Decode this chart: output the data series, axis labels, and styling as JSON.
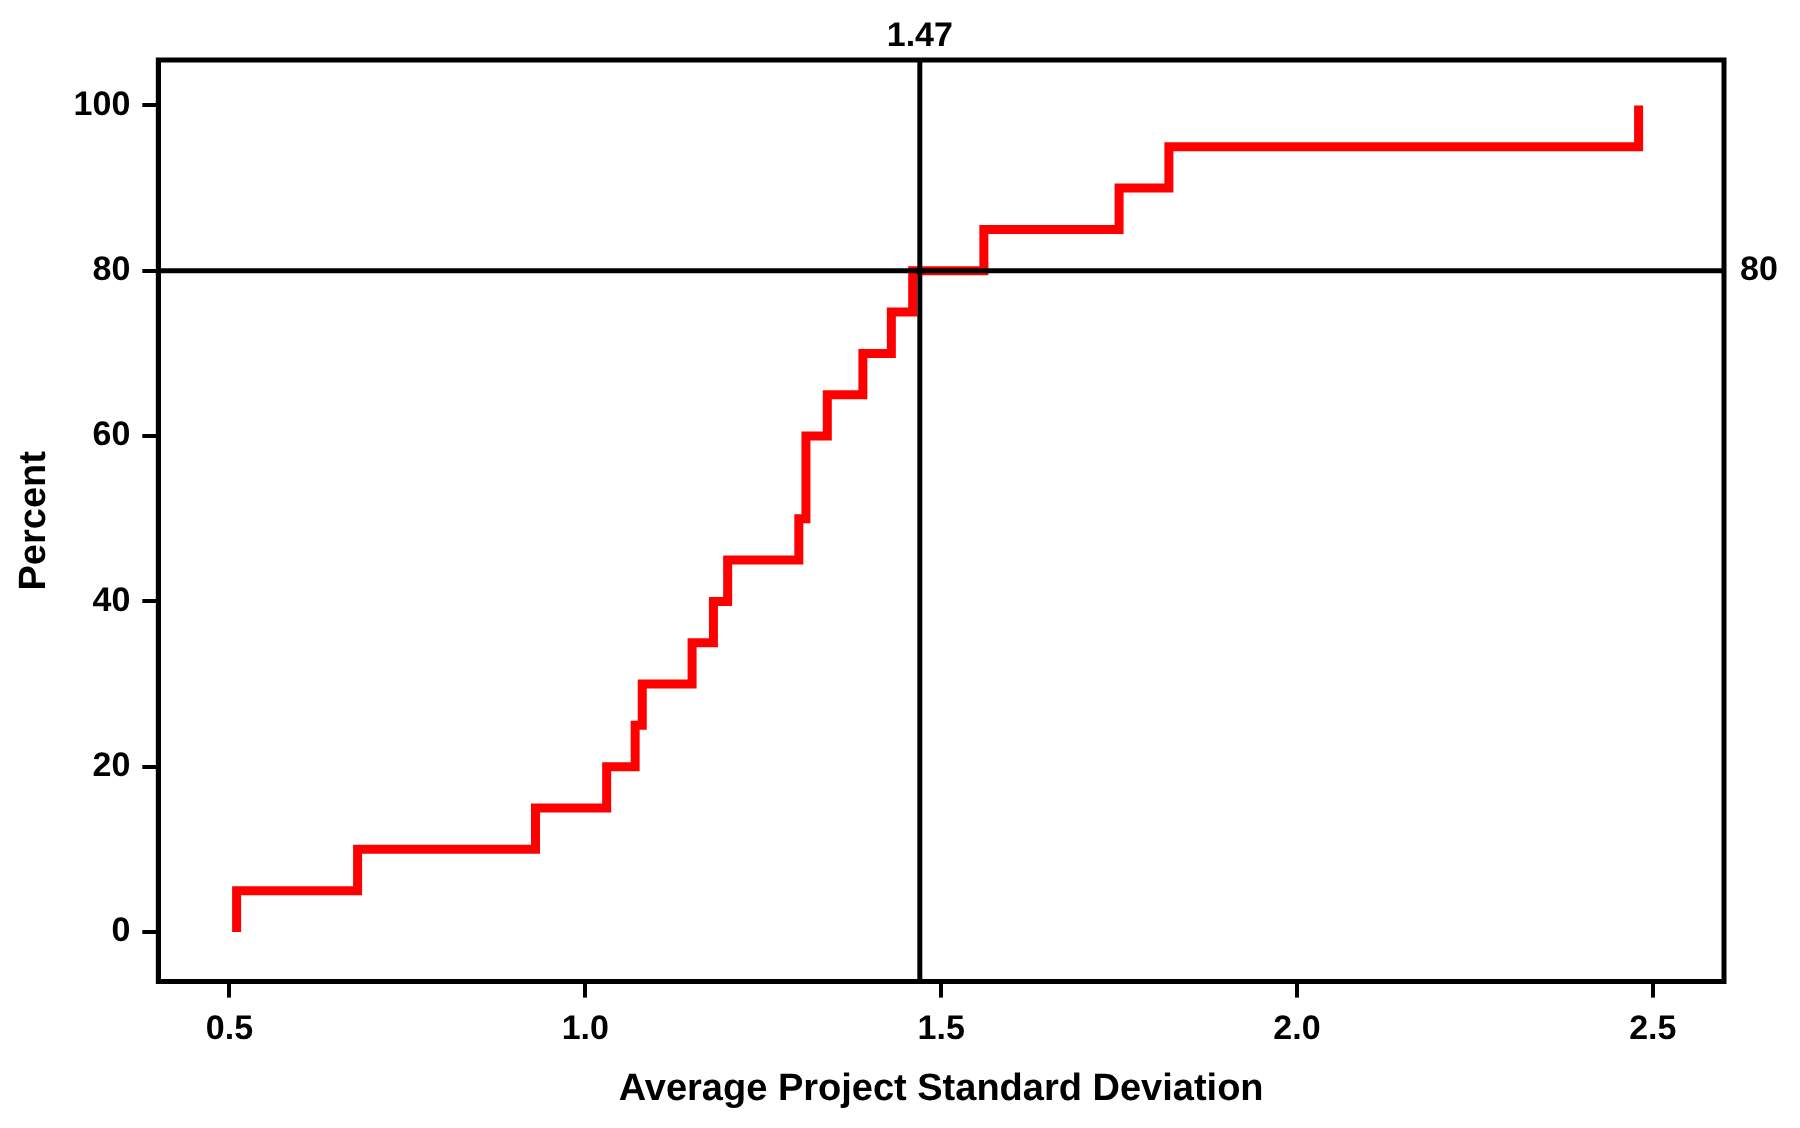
{
  "chart_data": {
    "type": "step",
    "xlabel": "Average Project Standard Deviation",
    "ylabel": "Percent",
    "x": [
      0.51,
      0.51,
      0.68,
      0.93,
      1.03,
      1.07,
      1.08,
      1.15,
      1.18,
      1.2,
      1.3,
      1.31,
      1.34,
      1.39,
      1.43,
      1.46,
      1.56,
      1.75,
      1.82,
      2.48
    ],
    "series": [
      {
        "color": "#ff0000",
        "values": [
          0,
          5,
          10,
          15,
          20,
          25,
          30,
          35,
          40,
          45,
          50,
          60,
          65,
          70,
          75,
          80,
          85,
          90,
          95,
          100
        ]
      }
    ],
    "xlim": [
      0.4,
      2.6
    ],
    "xticks": [
      {
        "value": 0.5,
        "label": "0.5"
      },
      {
        "value": 1,
        "label": "1.0"
      },
      {
        "value": 1.5,
        "label": "1.5"
      },
      {
        "value": 2,
        "label": "2.0"
      },
      {
        "value": 2.5,
        "label": "2.5"
      }
    ],
    "ylim": [
      -6,
      105.5
    ],
    "yticks": [
      0,
      20,
      40,
      60,
      80,
      100
    ],
    "grid": false,
    "marker": "none",
    "line_style": "solid",
    "ref_lines": [
      {
        "axis": "x",
        "value": 1.47,
        "label": "1.47",
        "color": "#000000"
      },
      {
        "axis": "y",
        "value": 80,
        "label": "80",
        "color": "#000000"
      }
    ]
  }
}
